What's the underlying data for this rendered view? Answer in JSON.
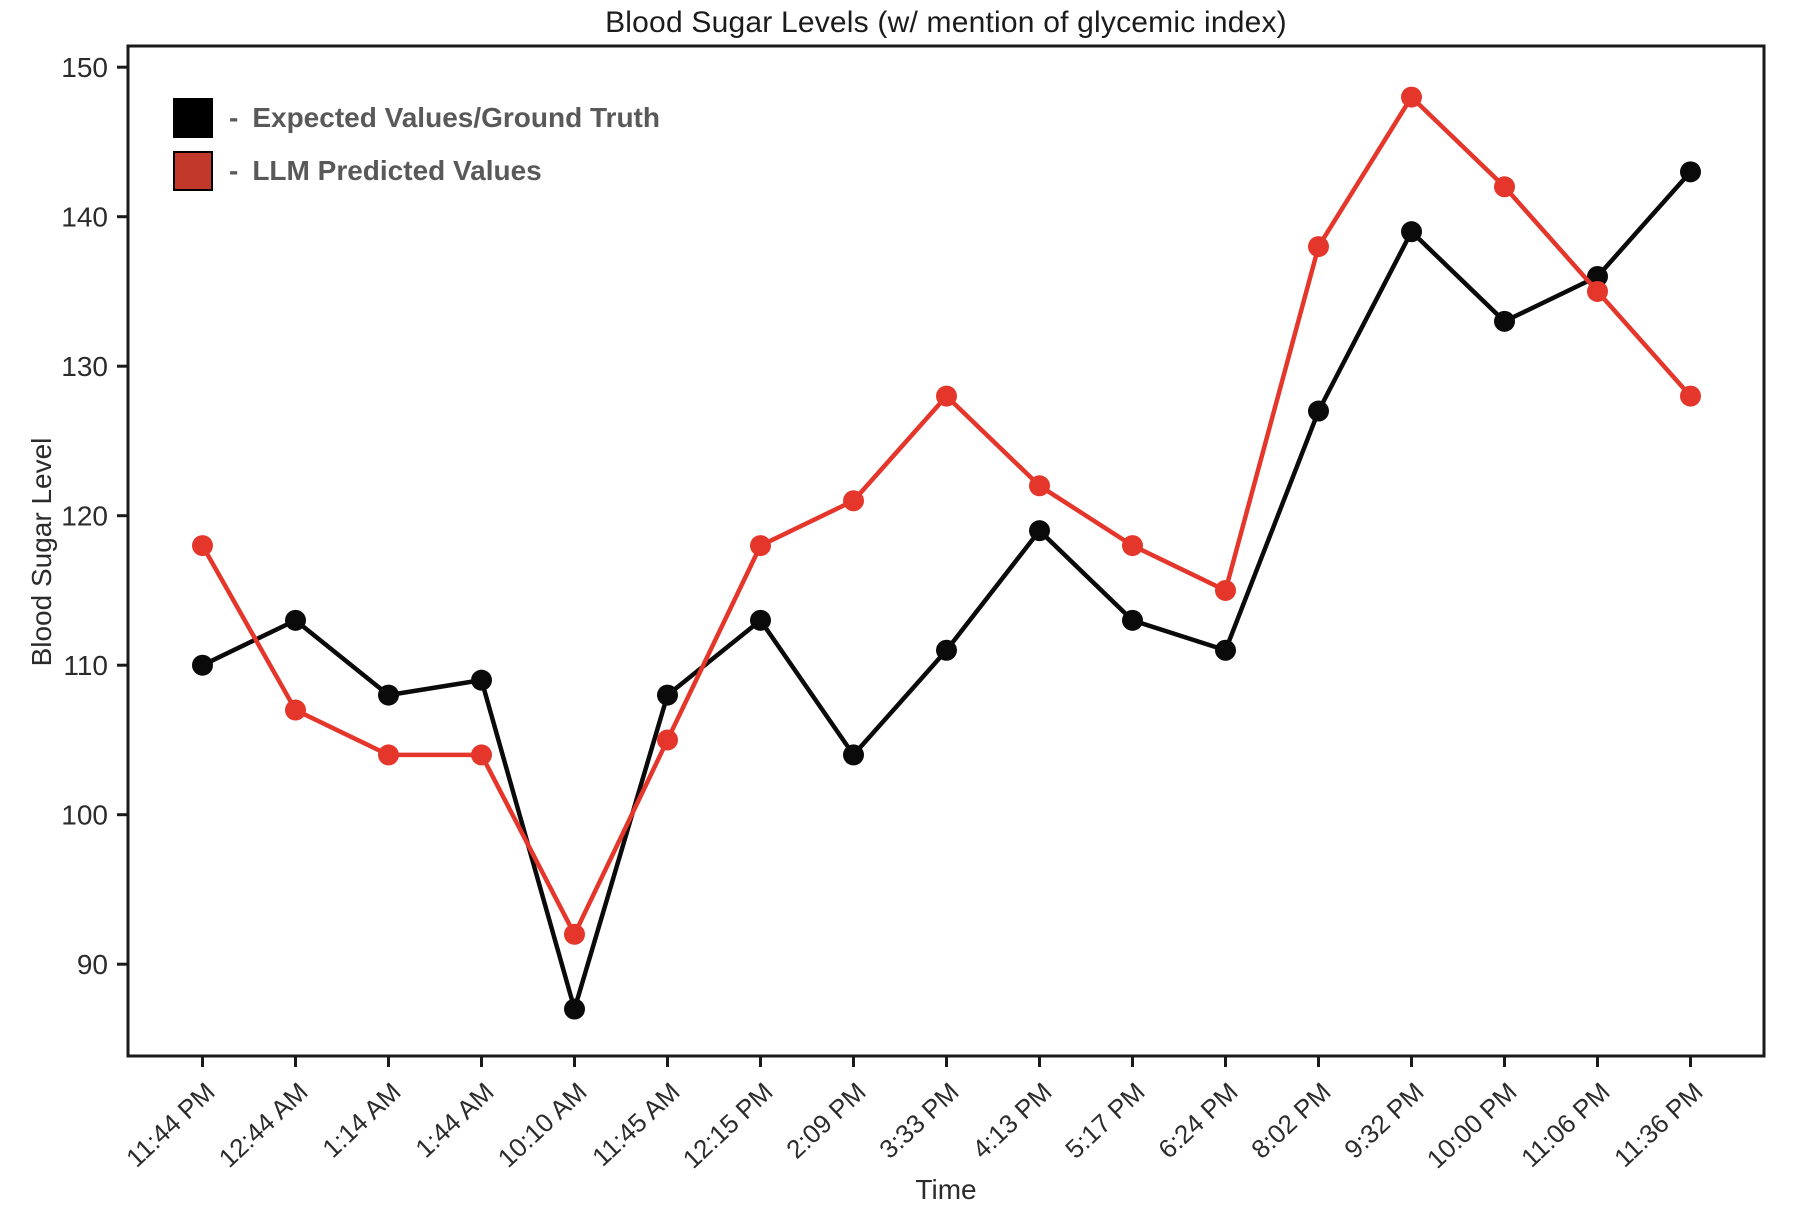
{
  "figure": {
    "title": "Blood Sugar Levels (w/ mention of glycemic index)"
  },
  "legend": {
    "separator": "-",
    "items": [
      {
        "label": "Expected Values/Ground Truth",
        "swatch_color": "#000000"
      },
      {
        "label": "LLM Predicted Values",
        "swatch_color": "#c2392b"
      }
    ]
  },
  "chart_data": {
    "type": "line",
    "title": "Blood Sugar Levels (w/ mention of glycemic index)",
    "xlabel": "Time",
    "ylabel": "Blood Sugar Level",
    "categories": [
      "11:44 PM",
      "12:44 AM",
      "1:14 AM",
      "1:44 AM",
      "10:10 AM",
      "11:45 AM",
      "12:15 PM",
      "2:09 PM",
      "3:33 PM",
      "4:13 PM",
      "5:17 PM",
      "6:24 PM",
      "8:02 PM",
      "9:32 PM",
      "10:00 PM",
      "11:06 PM",
      "11:36 PM"
    ],
    "y_ticks": [
      90,
      100,
      110,
      120,
      130,
      140,
      150
    ],
    "ylim": [
      83.7,
      151.3
    ],
    "grid": false,
    "legend_position": "upper left",
    "marker": "o",
    "series": [
      {
        "name": "Expected Values/Ground Truth",
        "color": "#0a0a0a",
        "values": [
          110,
          113,
          108,
          109,
          87,
          108,
          113,
          104,
          111,
          119,
          113,
          111,
          127,
          139,
          133,
          136,
          143
        ]
      },
      {
        "name": "LLM Predicted Values",
        "color": "#e5362b",
        "values": [
          118,
          107,
          104,
          104,
          92,
          105,
          118,
          121,
          128,
          122,
          118,
          115,
          138,
          148,
          142,
          135,
          128
        ]
      }
    ]
  }
}
